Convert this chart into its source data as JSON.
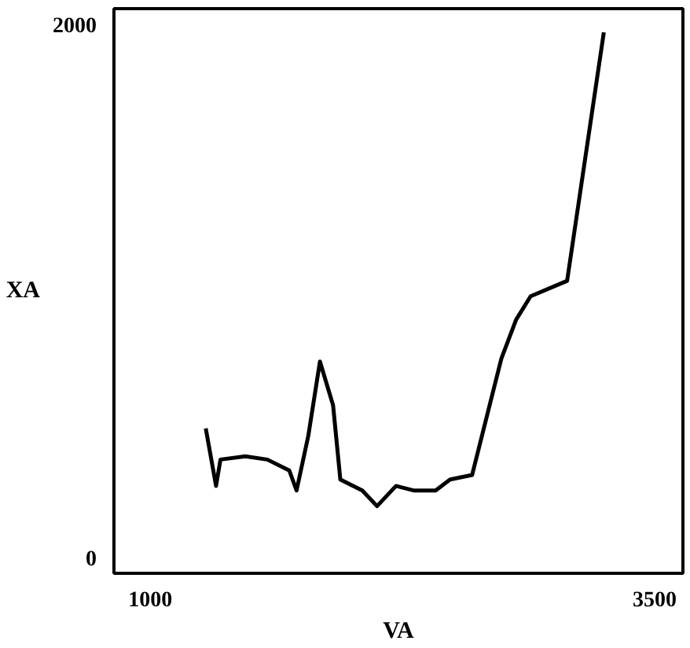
{
  "chart_data": {
    "type": "line",
    "xlabel": "VA",
    "ylabel": "XA",
    "x": [
      1275,
      1326,
      1348,
      1471,
      1580,
      1689,
      1725,
      1783,
      1841,
      1906,
      1942,
      2051,
      2124,
      2218,
      2305,
      2414,
      2486,
      2595,
      2740,
      2813,
      2885,
      3066,
      3248
    ],
    "series": [
      {
        "color": "#000000",
        "values": [
          484,
          268,
          367,
          379,
          367,
          326,
          251,
          455,
          735,
          571,
          292,
          251,
          192,
          268,
          251,
          251,
          292,
          309,
          746,
          892,
          980,
          1038,
          1971
        ]
      }
    ],
    "xlim": [
      820,
      3640
    ],
    "ylim": [
      -60,
      2060
    ],
    "xticks": [
      1000,
      3500
    ],
    "yticks": [
      0,
      2000
    ],
    "grid": false,
    "marker": "none",
    "line_style": "solid"
  }
}
